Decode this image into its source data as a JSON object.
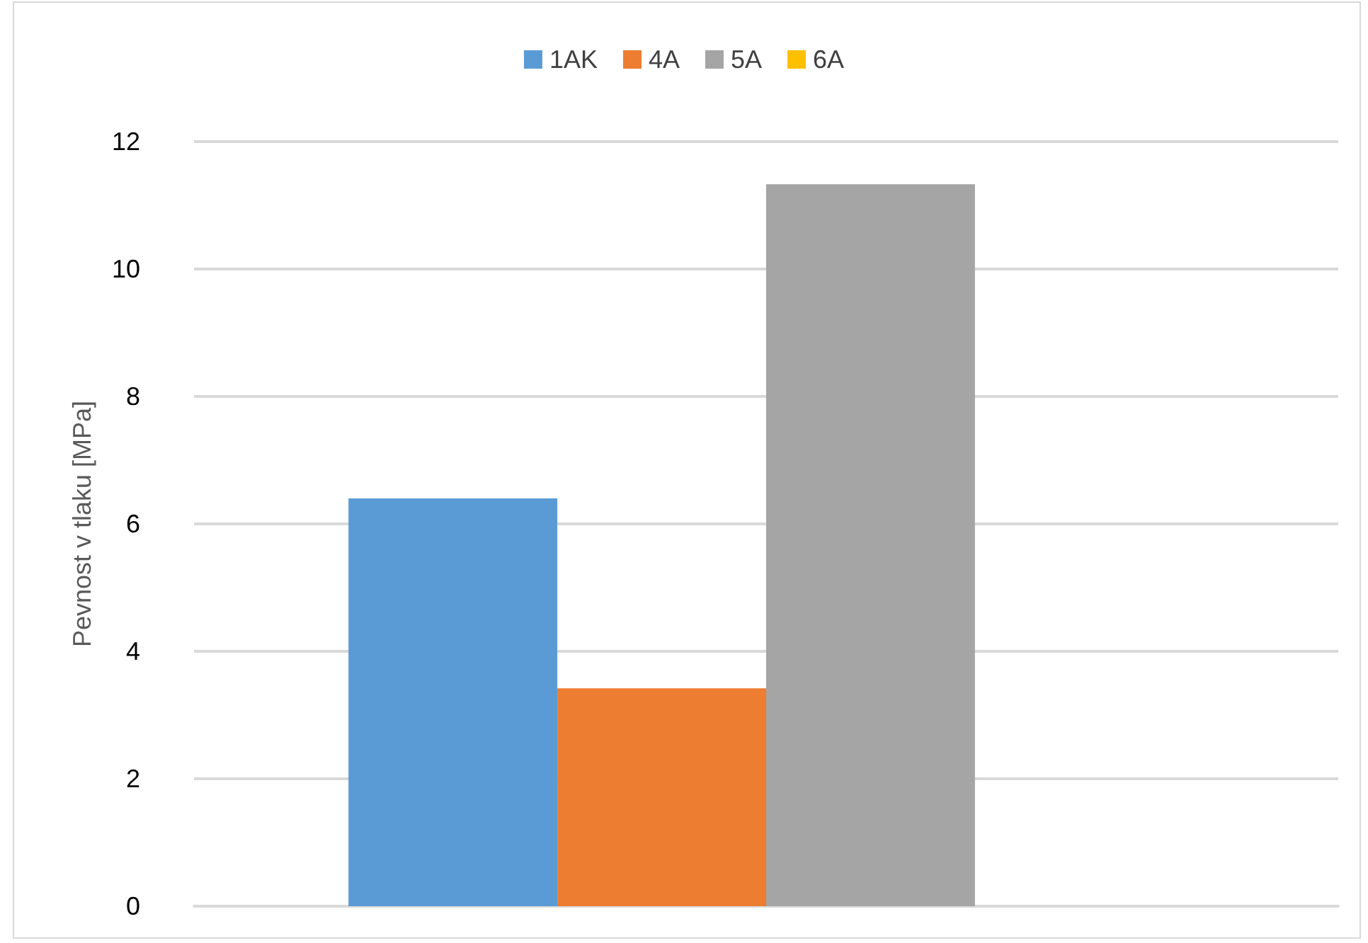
{
  "chart_data": {
    "type": "bar",
    "ylabel": "Pevnost v tlaku [MPa]",
    "categories": [
      null
    ],
    "series": [
      {
        "name": "1AK",
        "color": "#5b9bd5",
        "values": [
          6.4
        ]
      },
      {
        "name": "4A",
        "color": "#ed7d31",
        "values": [
          3.42
        ]
      },
      {
        "name": "5A",
        "color": "#a5a5a5",
        "values": [
          11.33
        ]
      },
      {
        "name": "6A",
        "color": "#ffc000",
        "values": [
          null
        ]
      }
    ],
    "ylim": [
      0,
      12
    ],
    "yticks": [
      0,
      2,
      4,
      6,
      8,
      10,
      12
    ],
    "grid": "y",
    "legend": "top"
  }
}
